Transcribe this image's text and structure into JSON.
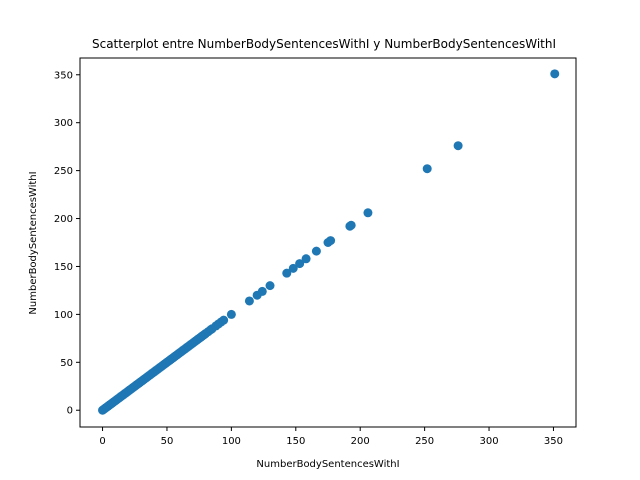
{
  "chart_data": {
    "type": "scatter",
    "title": "Scatterplot entre NumberBodySentencesWithI y NumberBodySentencesWithI",
    "xlabel": "NumberBodySentencesWithI",
    "ylabel": "NumberBodySentencesWithI",
    "xlim": [
      -17.5,
      367.5
    ],
    "ylim": [
      -17.5,
      367.5
    ],
    "xticks": [
      0,
      50,
      100,
      150,
      200,
      250,
      300,
      350
    ],
    "yticks": [
      0,
      50,
      100,
      150,
      200,
      250,
      300,
      350
    ],
    "grid": false,
    "legend": "none",
    "marker_color": "#1f77b4",
    "series": [
      {
        "x": [
          0,
          1,
          2,
          3,
          4,
          5,
          6,
          7,
          8,
          9,
          10,
          11,
          12,
          13,
          14,
          15,
          16,
          17,
          18,
          19,
          20,
          21,
          22,
          23,
          24,
          25,
          26,
          27,
          28,
          29,
          30,
          31,
          32,
          33,
          34,
          35,
          36,
          37,
          38,
          39,
          40,
          41,
          42,
          43,
          44,
          45,
          46,
          47,
          48,
          49,
          50,
          51,
          52,
          53,
          54,
          55,
          56,
          57,
          58,
          59,
          60,
          61,
          62,
          63,
          64,
          65,
          66,
          67,
          68,
          69,
          70,
          71,
          72,
          73,
          74,
          75,
          76,
          77,
          78,
          79,
          80,
          82,
          84,
          85,
          88,
          90,
          92,
          94,
          100,
          114,
          120,
          124,
          130,
          143,
          148,
          153,
          158,
          166,
          175,
          177,
          192,
          193,
          206,
          252,
          276,
          351
        ],
        "y": [
          0,
          1,
          2,
          3,
          4,
          5,
          6,
          7,
          8,
          9,
          10,
          11,
          12,
          13,
          14,
          15,
          16,
          17,
          18,
          19,
          20,
          21,
          22,
          23,
          24,
          25,
          26,
          27,
          28,
          29,
          30,
          31,
          32,
          33,
          34,
          35,
          36,
          37,
          38,
          39,
          40,
          41,
          42,
          43,
          44,
          45,
          46,
          47,
          48,
          49,
          50,
          51,
          52,
          53,
          54,
          55,
          56,
          57,
          58,
          59,
          60,
          61,
          62,
          63,
          64,
          65,
          66,
          67,
          68,
          69,
          70,
          71,
          72,
          73,
          74,
          75,
          76,
          77,
          78,
          79,
          80,
          82,
          84,
          85,
          88,
          90,
          92,
          94,
          100,
          114,
          120,
          124,
          130,
          143,
          148,
          153,
          158,
          166,
          175,
          177,
          192,
          193,
          206,
          252,
          276,
          351
        ]
      }
    ]
  }
}
